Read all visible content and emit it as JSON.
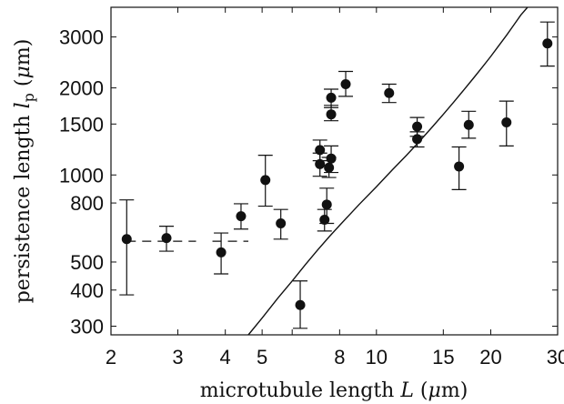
{
  "chart_data": {
    "type": "scatter",
    "xlabel": "microtubule length L (μm)",
    "ylabel": "persistence length l_p (μm)",
    "xlabel_parts": [
      "microtubule length ",
      "L",
      " (",
      "μ",
      "m)"
    ],
    "ylabel_parts": [
      "persistence length ",
      "l",
      "p",
      " (",
      "μ",
      "m)"
    ],
    "xscale": "log",
    "yscale": "log",
    "xlim": [
      2,
      30
    ],
    "ylim": [
      280,
      3800
    ],
    "xticks": [
      2,
      3,
      4,
      5,
      6,
      8,
      10,
      15,
      20,
      30
    ],
    "xtick_labels": [
      "2",
      "3",
      "4",
      "5",
      "",
      "8",
      "10",
      "15",
      "20",
      "30"
    ],
    "yticks": [
      300,
      400,
      500,
      800,
      1000,
      1500,
      2000,
      3000
    ],
    "ytick_labels": [
      "300",
      "400",
      "500",
      "800",
      "1000",
      "1500",
      "2000",
      "3000"
    ],
    "grid": false,
    "points": [
      {
        "x": 2.2,
        "y": 600,
        "ylow": 385,
        "yhigh": 820
      },
      {
        "x": 2.8,
        "y": 605,
        "ylow": 545,
        "yhigh": 665
      },
      {
        "x": 3.9,
        "y": 540,
        "ylow": 455,
        "yhigh": 630
      },
      {
        "x": 4.4,
        "y": 720,
        "ylow": 650,
        "yhigh": 795
      },
      {
        "x": 5.1,
        "y": 960,
        "ylow": 780,
        "yhigh": 1170
      },
      {
        "x": 5.6,
        "y": 680,
        "ylow": 600,
        "yhigh": 760
      },
      {
        "x": 6.3,
        "y": 355,
        "ylow": 295,
        "yhigh": 430
      },
      {
        "x": 7.1,
        "y": 1220,
        "ylow": 1120,
        "yhigh": 1320
      },
      {
        "x": 7.1,
        "y": 1090,
        "ylow": 990,
        "yhigh": 1190
      },
      {
        "x": 7.3,
        "y": 700,
        "ylow": 640,
        "yhigh": 760
      },
      {
        "x": 7.4,
        "y": 790,
        "ylow": 680,
        "yhigh": 900
      },
      {
        "x": 7.5,
        "y": 1060,
        "ylow": 980,
        "yhigh": 1150
      },
      {
        "x": 7.6,
        "y": 1140,
        "ylow": 1020,
        "yhigh": 1260
      },
      {
        "x": 7.6,
        "y": 1620,
        "ylow": 1540,
        "yhigh": 1740
      },
      {
        "x": 7.6,
        "y": 1850,
        "ylow": 1710,
        "yhigh": 1980
      },
      {
        "x": 8.3,
        "y": 2060,
        "ylow": 1870,
        "yhigh": 2280
      },
      {
        "x": 10.8,
        "y": 1920,
        "ylow": 1780,
        "yhigh": 2060
      },
      {
        "x": 12.8,
        "y": 1470,
        "ylow": 1360,
        "yhigh": 1580
      },
      {
        "x": 12.8,
        "y": 1330,
        "ylow": 1250,
        "yhigh": 1410
      },
      {
        "x": 16.5,
        "y": 1070,
        "ylow": 890,
        "yhigh": 1250
      },
      {
        "x": 17.5,
        "y": 1490,
        "ylow": 1340,
        "yhigh": 1660
      },
      {
        "x": 22.0,
        "y": 1520,
        "ylow": 1260,
        "yhigh": 1800
      },
      {
        "x": 28.2,
        "y": 2850,
        "ylow": 2380,
        "yhigh": 3380
      }
    ],
    "dashed_segments": [
      {
        "x1": 2.2,
        "x2": 3.35,
        "y": 590
      },
      {
        "x1": 3.7,
        "x2": 4.6,
        "y": 590
      }
    ],
    "fit_curve": {
      "x": [
        4.6,
        5.0,
        5.5,
        6.0,
        6.5,
        7.0,
        7.5,
        8.0,
        9.0,
        10.0,
        11.0,
        12.0,
        13.0,
        14.0,
        15.0,
        16.0,
        17.0,
        18.0,
        19.0,
        20.0,
        21.0,
        22.0,
        23.0,
        24.0,
        25.0
      ],
      "y": [
        280,
        320,
        375,
        430,
        490,
        550,
        610,
        670,
        790,
        910,
        1040,
        1170,
        1310,
        1460,
        1620,
        1790,
        1970,
        2160,
        2360,
        2570,
        2800,
        3040,
        3300,
        3570,
        3850
      ]
    }
  }
}
